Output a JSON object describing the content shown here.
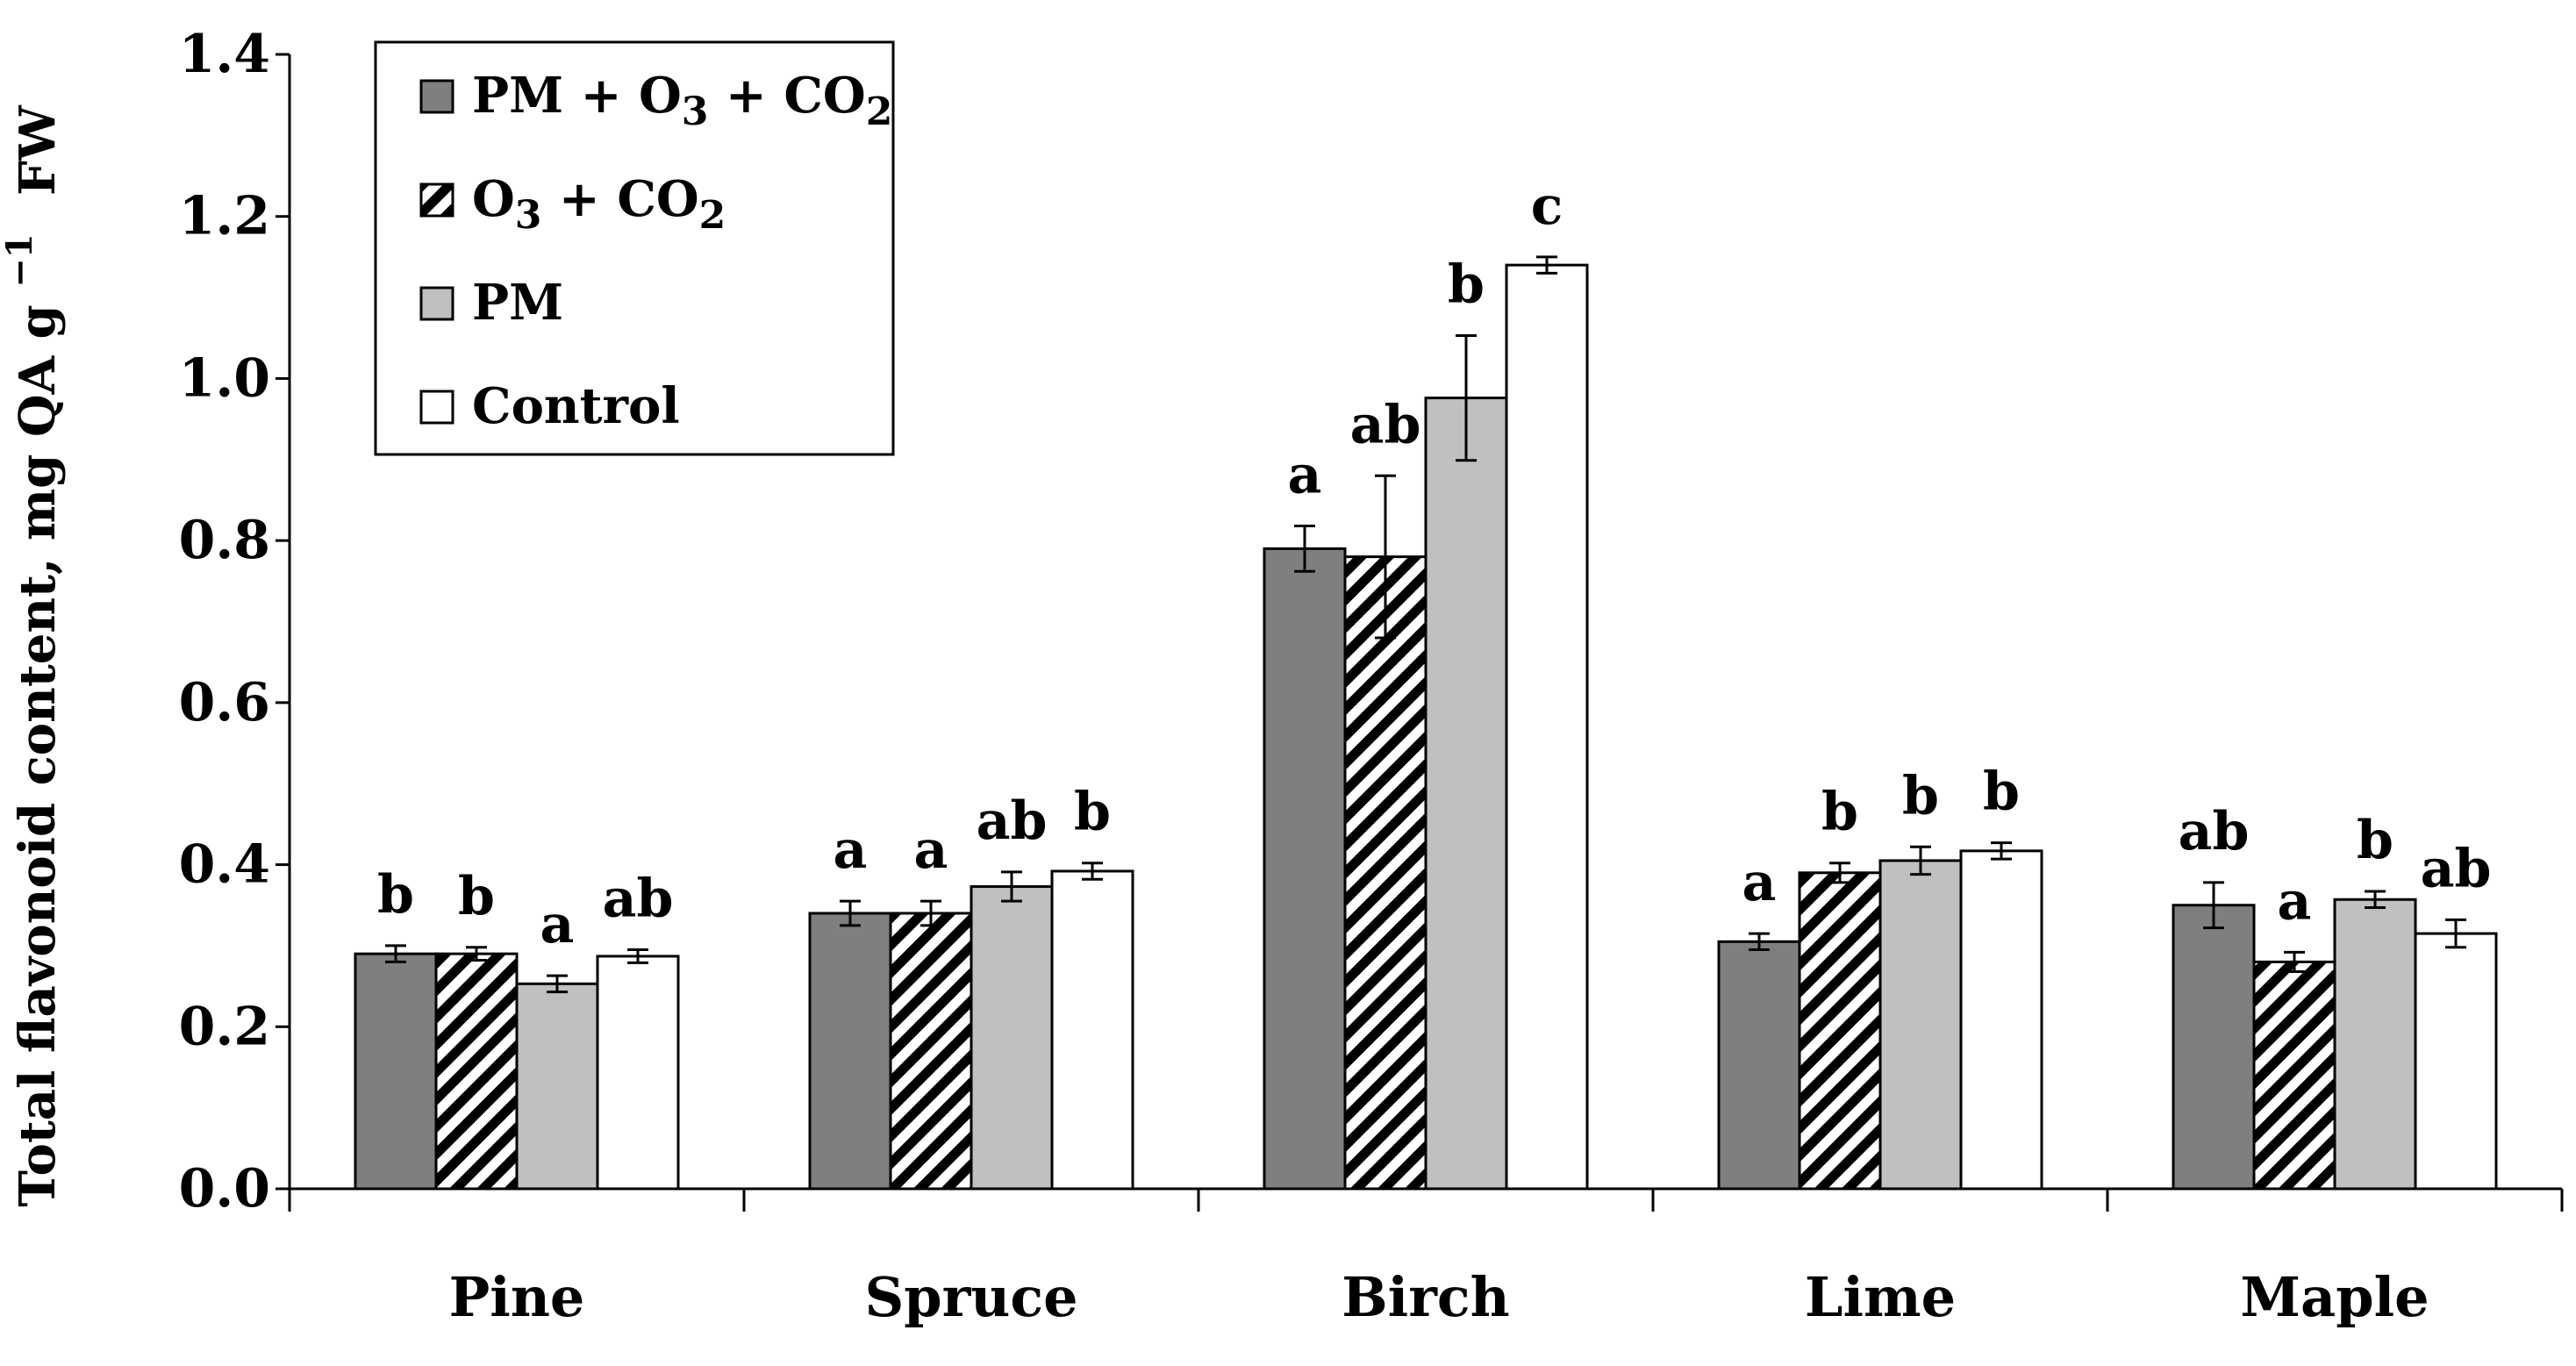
{
  "chart_data": {
    "type": "bar",
    "title": "",
    "xlabel": "",
    "ylabel": "Total flavonoid content, mg QA g",
    "ylabel_sup": "−1",
    "ylabel_suffix": "FW",
    "ylim": [
      0,
      1.4
    ],
    "yticks": [
      "0.0",
      "0.2",
      "0.4",
      "0.6",
      "0.8",
      "1.0",
      "1.2",
      "1.4"
    ],
    "ytick_values": [
      0,
      0.2,
      0.4,
      0.6,
      0.8,
      1.0,
      1.2,
      1.4
    ],
    "categories": [
      "Pine",
      "Spruce",
      "Birch",
      "Lime",
      "Maple"
    ],
    "series": [
      {
        "name": "PM + O3 + CO2",
        "legend_parts": [
          {
            "t": "PM + O",
            "sub": false
          },
          {
            "t": "3",
            "sub": true
          },
          {
            "t": " + CO",
            "sub": false
          },
          {
            "t": "2",
            "sub": true
          }
        ],
        "fill": "#7f7f7f",
        "pattern": "solid",
        "values": [
          0.29,
          0.34,
          0.79,
          0.305,
          0.35
        ],
        "errors": [
          0.01,
          0.015,
          0.028,
          0.01,
          0.028
        ],
        "letters": [
          "b",
          "a",
          "a",
          "a",
          "ab"
        ]
      },
      {
        "name": "O3 + CO2",
        "legend_parts": [
          {
            "t": "O",
            "sub": false
          },
          {
            "t": "3",
            "sub": true
          },
          {
            "t": " + CO",
            "sub": false
          },
          {
            "t": "2",
            "sub": true
          }
        ],
        "fill": "#ffffff",
        "pattern": "hatch",
        "values": [
          0.29,
          0.34,
          0.78,
          0.39,
          0.28
        ],
        "errors": [
          0.008,
          0.015,
          0.1,
          0.012,
          0.012
        ],
        "letters": [
          "b",
          "a",
          "ab",
          "b",
          "a"
        ]
      },
      {
        "name": "PM",
        "legend_parts": [
          {
            "t": "PM",
            "sub": false
          }
        ],
        "fill": "#c0c0c0",
        "pattern": "solid",
        "values": [
          0.253,
          0.373,
          0.976,
          0.405,
          0.357
        ],
        "errors": [
          0.01,
          0.018,
          0.077,
          0.017,
          0.01
        ],
        "letters": [
          "a",
          "ab",
          "b",
          "b",
          "b"
        ]
      },
      {
        "name": "Control",
        "legend_parts": [
          {
            "t": "Control",
            "sub": false
          }
        ],
        "fill": "#ffffff",
        "pattern": "solid",
        "values": [
          0.287,
          0.392,
          1.14,
          0.417,
          0.315
        ],
        "errors": [
          0.008,
          0.01,
          0.01,
          0.01,
          0.017
        ],
        "letters": [
          "ab",
          "b",
          "c",
          "b",
          "ab"
        ]
      }
    ],
    "legend_position": "top-left",
    "grid": false
  }
}
